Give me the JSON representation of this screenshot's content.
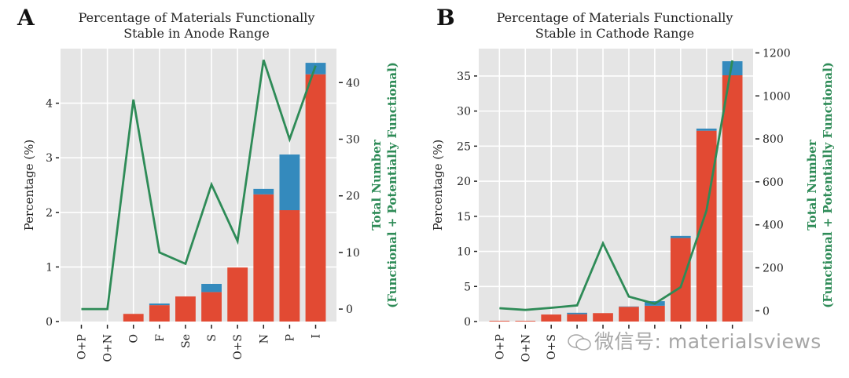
{
  "chart_data": [
    {
      "panel": "A",
      "type": "bar",
      "stacked": true,
      "title": [
        "Percentage of Materials Functionally",
        "Stable in Anode Range"
      ],
      "xlabel": "",
      "ylabel": "Percentage (%)",
      "ylabel_right": [
        "Total Number",
        "(Functional + Potentially Functional)"
      ],
      "ylim": [
        0,
        5.0
      ],
      "yticks": [
        0,
        1,
        2,
        3,
        4
      ],
      "ylim_right": [
        -2.2,
        46
      ],
      "yticks_right": [
        0,
        10,
        20,
        30,
        40
      ],
      "grid": true,
      "categories": [
        "O+P",
        "O+N",
        "O",
        "F",
        "Se",
        "S",
        "O+S",
        "N",
        "P",
        "I"
      ],
      "series": [
        {
          "name": "Functional",
          "color": "#e24a33",
          "axis": "left",
          "kind": "bar",
          "values": [
            0,
            0,
            0.14,
            0.3,
            0.46,
            0.54,
            0.99,
            2.33,
            2.04,
            4.53
          ]
        },
        {
          "name": "Potentially Functional",
          "color": "#348abd",
          "axis": "left",
          "kind": "bar",
          "values": [
            0,
            0,
            0.0,
            0.03,
            0.0,
            0.15,
            0.0,
            0.1,
            1.02,
            0.21
          ]
        },
        {
          "name": "Total Number",
          "color": "#2e8b57",
          "axis": "right",
          "kind": "line",
          "values": [
            0,
            0,
            37,
            10,
            8,
            22,
            12,
            44,
            30,
            43
          ]
        }
      ]
    },
    {
      "panel": "B",
      "type": "bar",
      "stacked": true,
      "title": [
        "Percentage of Materials Functionally",
        "Stable in Cathode Range"
      ],
      "xlabel": "",
      "ylabel": "Percentage (%)",
      "ylabel_right": [
        "Total Number",
        "(Functional + Potentially Functional)"
      ],
      "ylim": [
        0,
        38.9
      ],
      "yticks": [
        0,
        5,
        10,
        15,
        20,
        25,
        30,
        35
      ],
      "ylim_right": [
        -50,
        1220
      ],
      "yticks_right": [
        0,
        200,
        400,
        600,
        800,
        1000,
        1200
      ],
      "grid": true,
      "categories": [
        "O+P",
        "O+N",
        "O+S",
        "",
        "",
        "",
        "",
        "",
        "",
        ""
      ],
      "series": [
        {
          "name": "Functional",
          "color": "#e24a33",
          "axis": "left",
          "kind": "bar",
          "values": [
            0.1,
            0.1,
            1.0,
            1.05,
            1.2,
            2.1,
            2.25,
            11.9,
            27.2,
            35.1
          ]
        },
        {
          "name": "Potentially Functional",
          "color": "#348abd",
          "axis": "left",
          "kind": "bar",
          "values": [
            0,
            0,
            0.0,
            0.2,
            0.0,
            0.05,
            0.65,
            0.3,
            0.3,
            2.0
          ]
        },
        {
          "name": "Total Number",
          "color": "#2e8b57",
          "axis": "right",
          "kind": "line",
          "values": [
            12,
            4,
            14,
            25,
            314,
            66,
            33,
            110,
            467,
            1165
          ]
        }
      ]
    }
  ],
  "watermark": "微信号: materialsviews"
}
